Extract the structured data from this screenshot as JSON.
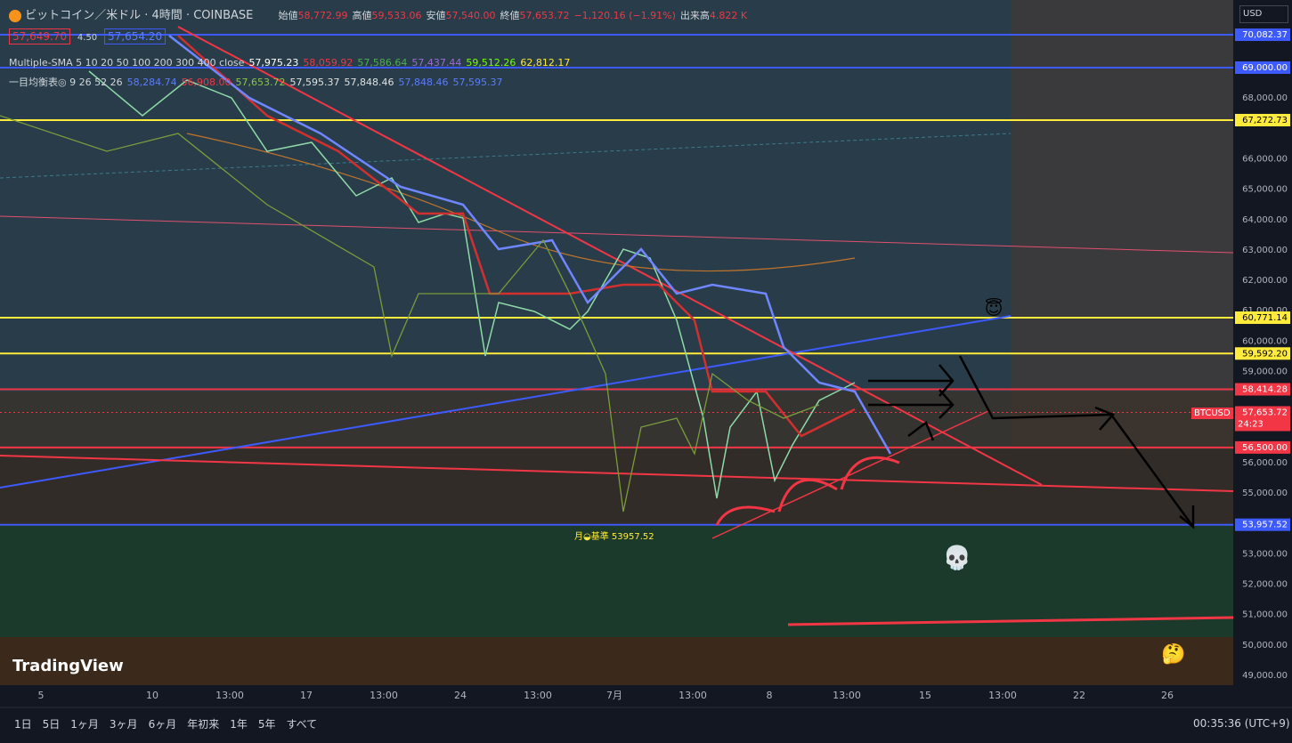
{
  "header": {
    "symbol": "ビットコイン／米ドル · 4時間 · COINBASE",
    "ohlc": [
      {
        "label": "始値",
        "value": "58,772.99"
      },
      {
        "label": "高値",
        "value": "59,533.06"
      },
      {
        "label": "安値",
        "value": "57,540.00"
      },
      {
        "label": "終値",
        "value": "57,653.72"
      }
    ],
    "change": "−1,120.16 (−1.91%)",
    "volume_label": "出来高",
    "volume": "4.822 K",
    "bid": "57,649.70",
    "spread": "4.50",
    "ask": "57,654.20"
  },
  "indicators": [
    {
      "name": "Multiple-SMA 5 10 20 50 100 200 300 400 close",
      "values": [
        {
          "text": "57,975.23",
          "color": "#ffffff"
        },
        {
          "text": "58,059.92",
          "color": "#f23645"
        },
        {
          "text": "57,586.64",
          "color": "#4caf50"
        },
        {
          "text": "57,437.44",
          "color": "#9c6bd6"
        },
        {
          "text": "59,512.26",
          "color": "#76ff03"
        },
        {
          "text": "62,812.17",
          "color": "#ffeb3b"
        }
      ]
    },
    {
      "name": "一目均衡表◎ 9 26 52 26",
      "values": [
        {
          "text": "58,284.74",
          "color": "#5c7cfa"
        },
        {
          "text": "56,908.00",
          "color": "#f23645"
        },
        {
          "text": "57,653.72",
          "color": "#8bc34a"
        },
        {
          "text": "57,595.37",
          "color": "#e0e0e0"
        },
        {
          "text": "57,848.46",
          "color": "#e0e0e0"
        },
        {
          "text": "57,848.46",
          "color": "#5c7cfa"
        },
        {
          "text": "57,595.37",
          "color": "#5c7cfa"
        }
      ]
    }
  ],
  "price_axis": {
    "currency": "USD",
    "ticks": [
      {
        "value": 68000,
        "label": "68,000.00"
      },
      {
        "value": 66000,
        "label": "66,000.00"
      },
      {
        "value": 65000,
        "label": "65,000.00"
      },
      {
        "value": 64000,
        "label": "64,000.00"
      },
      {
        "value": 63000,
        "label": "63,000.00"
      },
      {
        "value": 62000,
        "label": "62,000.00"
      },
      {
        "value": 61000,
        "label": "61,000.00"
      },
      {
        "value": 60000,
        "label": "60,000.00"
      },
      {
        "value": 59000,
        "label": "59,000.00"
      },
      {
        "value": 56000,
        "label": "56,000.00"
      },
      {
        "value": 55000,
        "label": "55,000.00"
      },
      {
        "value": 53000,
        "label": "53,000.00"
      },
      {
        "value": 52000,
        "label": "52,000.00"
      },
      {
        "value": 51000,
        "label": "51,000.00"
      },
      {
        "value": 50000,
        "label": "50,000.00"
      },
      {
        "value": 49000,
        "label": "49,000.00"
      }
    ],
    "levels": [
      {
        "value": 70082.37,
        "label": "70,082.37",
        "color": "#3d5afe"
      },
      {
        "value": 69000,
        "label": "69,000.00",
        "color": "#3d5afe"
      },
      {
        "value": 67272.73,
        "label": "67,272.73",
        "color": "#ffeb3b"
      },
      {
        "value": 60771.14,
        "label": "60,771.14",
        "color": "#ffeb3b"
      },
      {
        "value": 59592.2,
        "label": "59,592.20",
        "color": "#ffeb3b"
      },
      {
        "value": 58414.28,
        "label": "58,414.28",
        "color": "#f23645"
      },
      {
        "value": 56500,
        "label": "56,500.00",
        "color": "#f23645"
      },
      {
        "value": 53957.52,
        "label": "53,957.52",
        "color": "#3d5afe"
      }
    ],
    "current": {
      "symbol": "BTCUSD",
      "value": 57653.72,
      "label": "57,653.72",
      "countdown": "24:23"
    }
  },
  "annotation": "月◒基準 53957.52",
  "time_axis": [
    "5",
    "10",
    "13:00",
    "17",
    "13:00",
    "24",
    "13:00",
    "7月",
    "13:00",
    "8",
    "13:00",
    "15",
    "13:00",
    "22",
    "26"
  ],
  "logo": "TradingView",
  "bottom": {
    "ranges": [
      "1日",
      "5日",
      "1ヶ月",
      "3ヶ月",
      "6ヶ月",
      "年初来",
      "1年",
      "5年",
      "すべて"
    ],
    "clock": "00:35:36 (UTC+9)"
  }
}
